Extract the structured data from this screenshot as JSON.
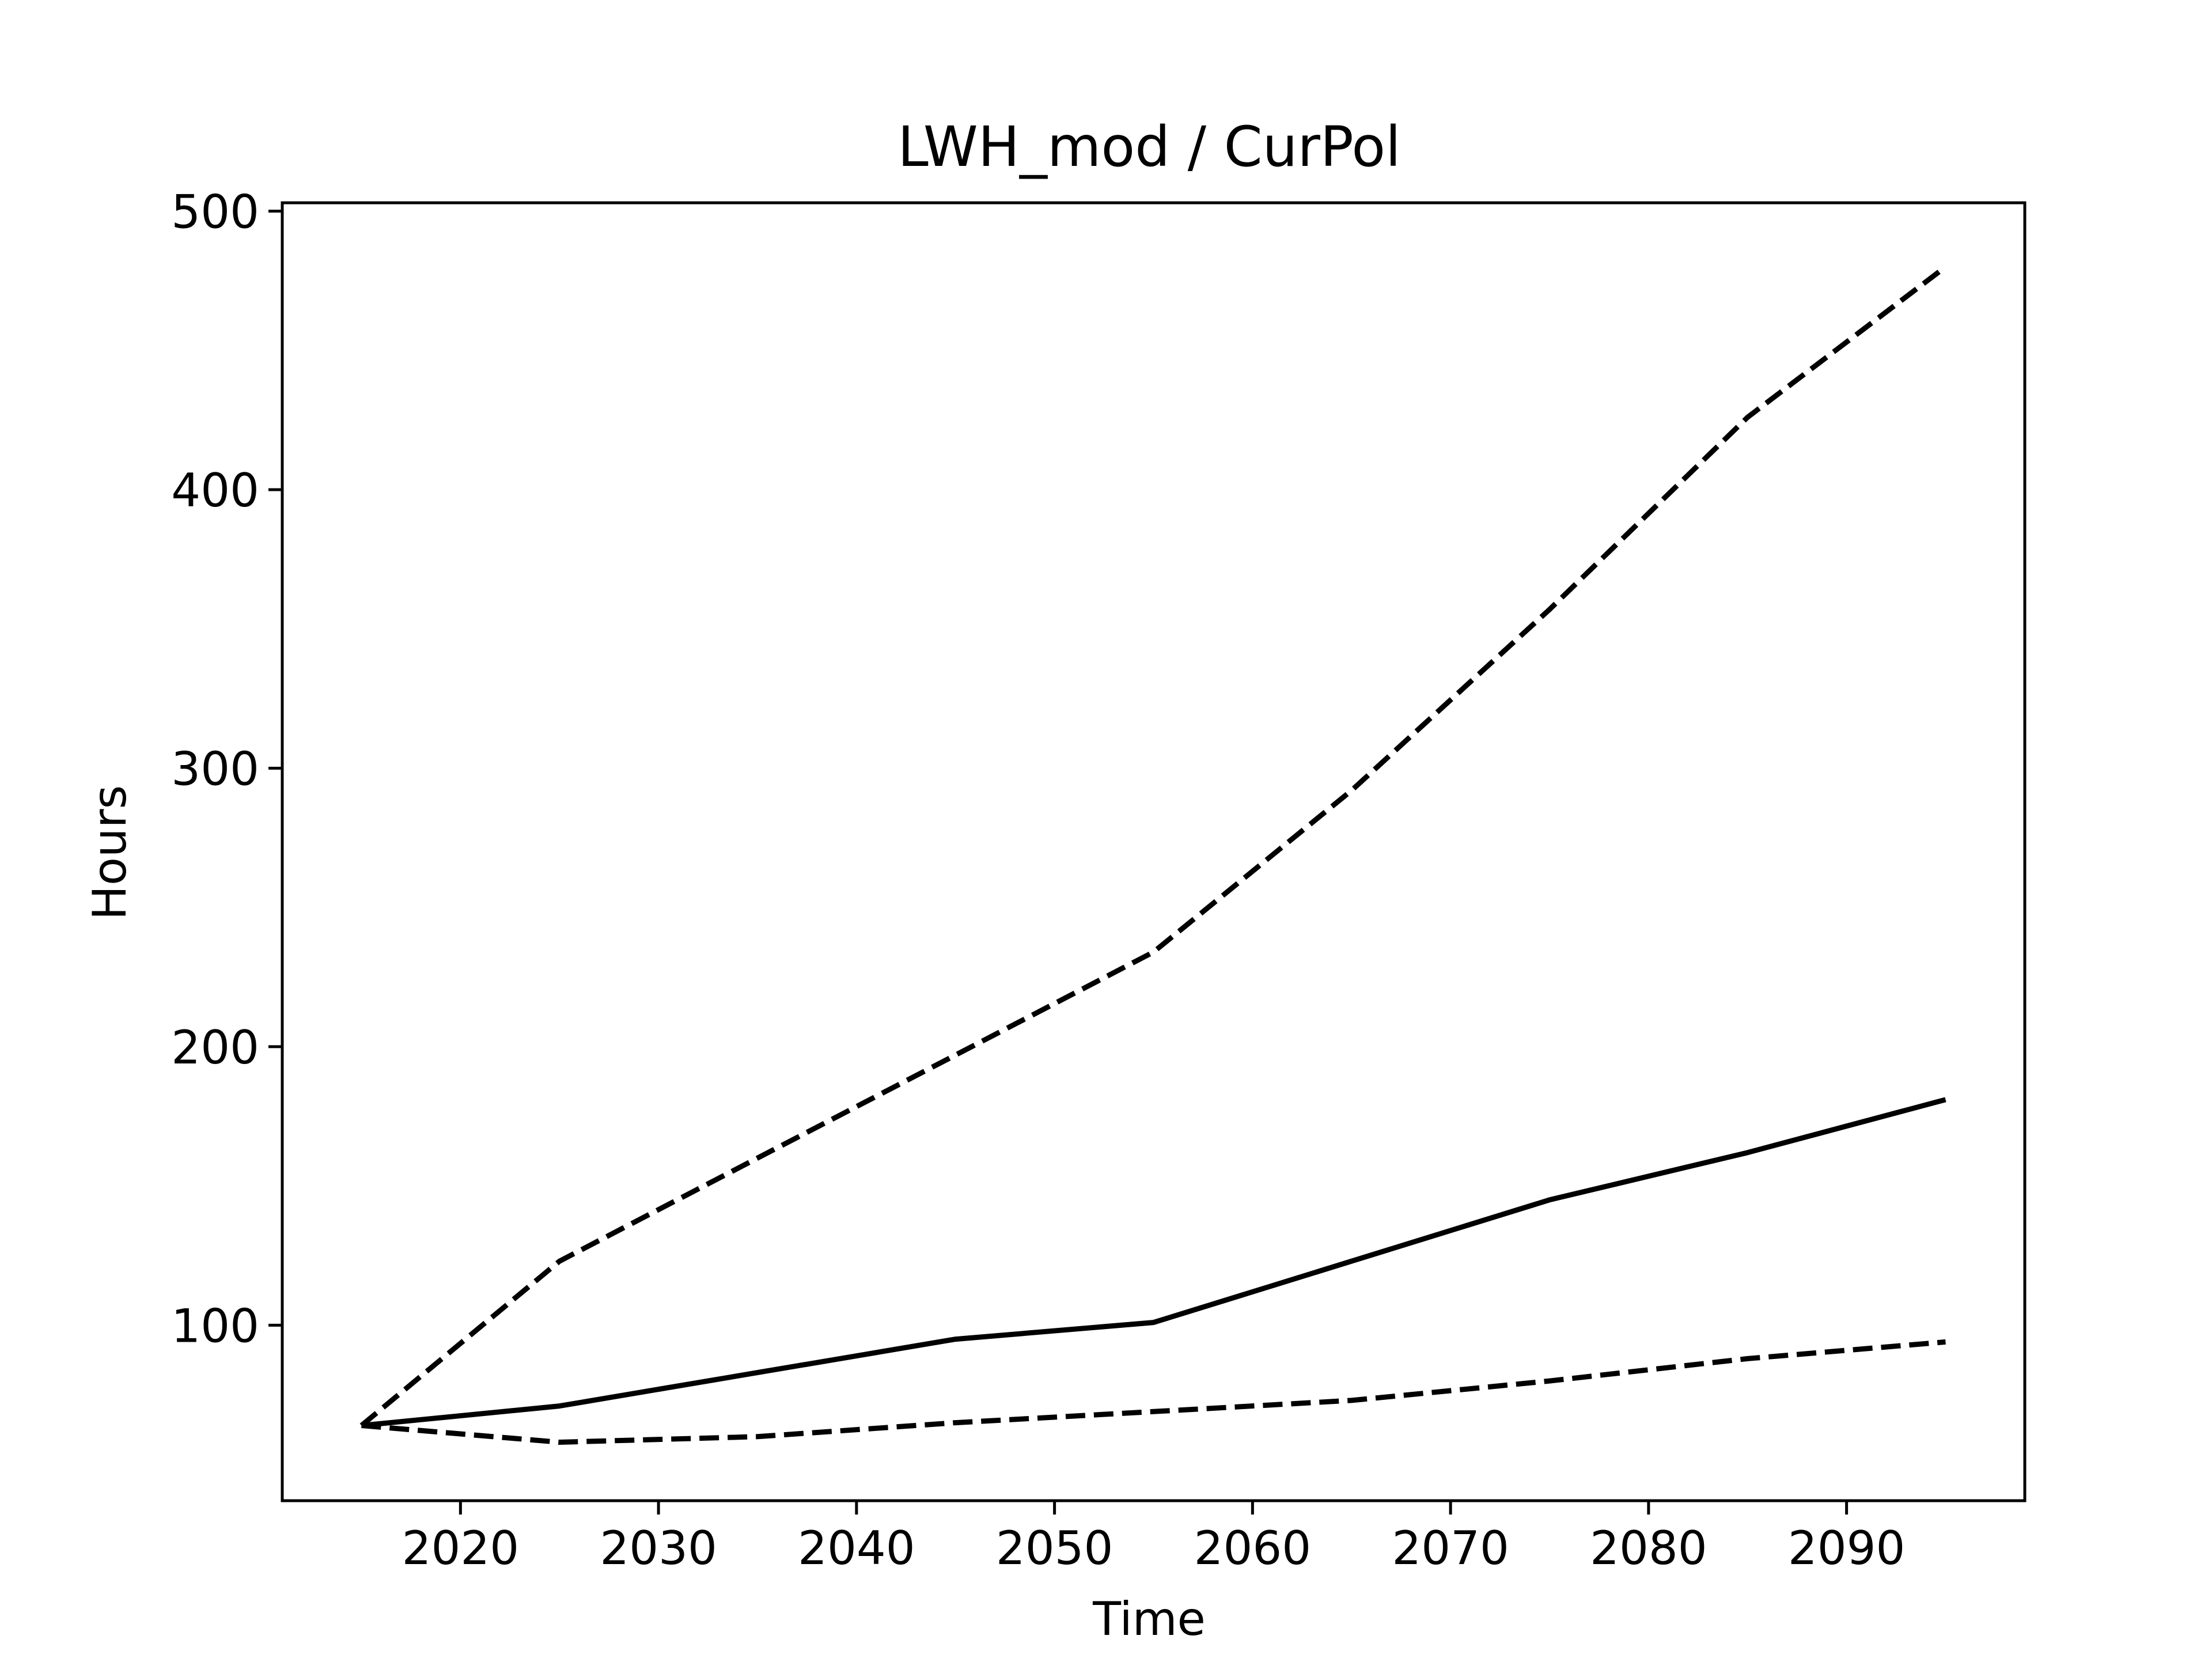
{
  "chart_data": {
    "type": "line",
    "title": "LWH_mod / CurPol",
    "xlabel": "Time",
    "ylabel": "Hours",
    "xlim": [
      2011,
      2099
    ],
    "ylim": [
      37,
      503
    ],
    "xticks": [
      2020,
      2030,
      2040,
      2050,
      2060,
      2070,
      2080,
      2090
    ],
    "yticks": [
      100,
      200,
      300,
      400,
      500
    ],
    "grid": false,
    "legend": "none",
    "x": [
      2015,
      2025,
      2035,
      2045,
      2055,
      2065,
      2075,
      2085,
      2095
    ],
    "series": [
      {
        "values": [
          64,
          123,
          160,
          197,
          234,
          292,
          357,
          426,
          480
        ],
        "style": "dashed",
        "color": "#000000"
      },
      {
        "values": [
          64,
          71,
          83,
          95,
          101,
          123,
          145,
          162,
          181
        ],
        "style": "solid",
        "color": "#000000"
      },
      {
        "values": [
          64,
          58,
          60,
          65,
          69,
          73,
          80,
          88,
          94
        ],
        "style": "dashed",
        "color": "#000000"
      }
    ]
  }
}
